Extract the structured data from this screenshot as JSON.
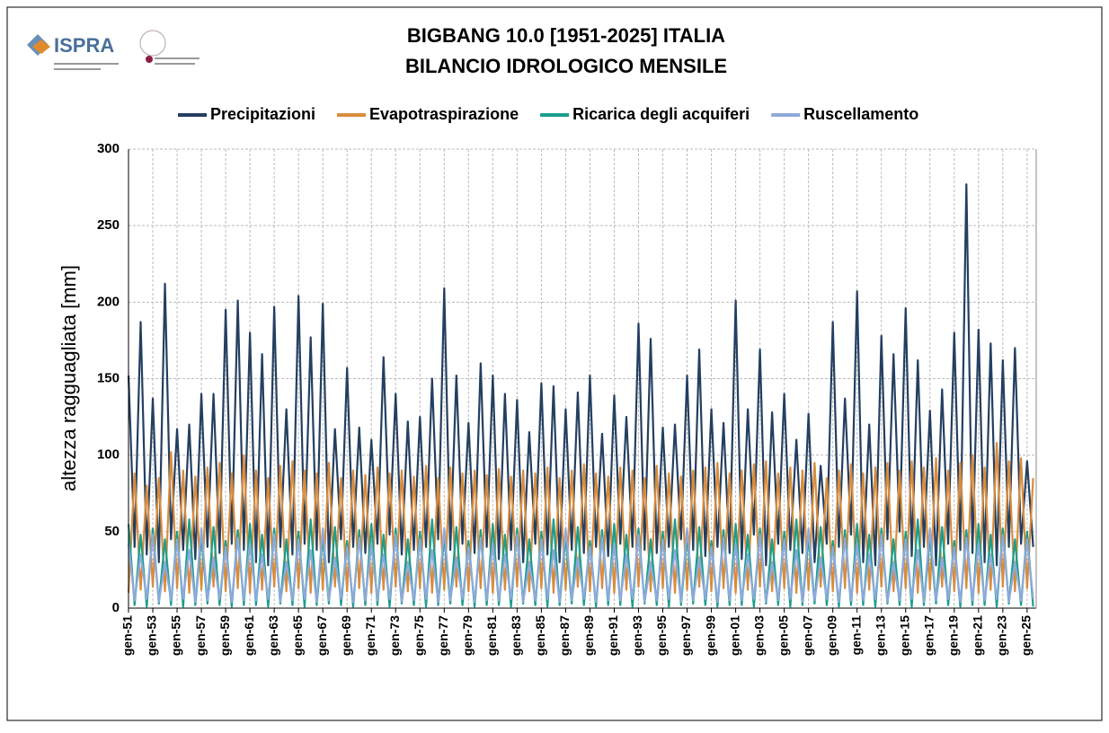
{
  "logo": "ISPRA",
  "chart_data": {
    "type": "line",
    "title": [
      "BIGBANG 10.0 [1951-2025] ITALIA",
      "BILANCIO IDROLOGICO MENSILE"
    ],
    "y_label": "altezza ragguagliata [mm]",
    "ylim": [
      0,
      300
    ],
    "yticks": [
      0,
      50,
      100,
      150,
      200,
      250,
      300
    ],
    "xlim": [
      1951,
      2025.75
    ],
    "xticks": [
      {
        "value": 1951,
        "label": "gen-51"
      },
      {
        "value": 1953,
        "label": "gen-53"
      },
      {
        "value": 1955,
        "label": "gen-55"
      },
      {
        "value": 1957,
        "label": "gen-57"
      },
      {
        "value": 1959,
        "label": "gen-59"
      },
      {
        "value": 1961,
        "label": "gen-61"
      },
      {
        "value": 1963,
        "label": "gen-63"
      },
      {
        "value": 1965,
        "label": "gen-65"
      },
      {
        "value": 1967,
        "label": "gen-67"
      },
      {
        "value": 1969,
        "label": "gen-69"
      },
      {
        "value": 1971,
        "label": "gen-71"
      },
      {
        "value": 1973,
        "label": "gen-73"
      },
      {
        "value": 1975,
        "label": "gen-75"
      },
      {
        "value": 1977,
        "label": "gen-77"
      },
      {
        "value": 1979,
        "label": "gen-79"
      },
      {
        "value": 1981,
        "label": "gen-81"
      },
      {
        "value": 1983,
        "label": "gen-83"
      },
      {
        "value": 1985,
        "label": "gen-85"
      },
      {
        "value": 1987,
        "label": "gen-87"
      },
      {
        "value": 1989,
        "label": "gen-89"
      },
      {
        "value": 1991,
        "label": "gen-91"
      },
      {
        "value": 1993,
        "label": "gen-93"
      },
      {
        "value": 1995,
        "label": "gen-95"
      },
      {
        "value": 1997,
        "label": "gen-97"
      },
      {
        "value": 1999,
        "label": "gen-99"
      },
      {
        "value": 2001,
        "label": "gen-01"
      },
      {
        "value": 2003,
        "label": "gen-03"
      },
      {
        "value": 2005,
        "label": "gen-05"
      },
      {
        "value": 2007,
        "label": "gen-07"
      },
      {
        "value": 2009,
        "label": "gen-09"
      },
      {
        "value": 2011,
        "label": "gen-11"
      },
      {
        "value": 2013,
        "label": "gen-13"
      },
      {
        "value": 2015,
        "label": "gen-15"
      },
      {
        "value": 2017,
        "label": "gen-17"
      },
      {
        "value": 2019,
        "label": "gen-19"
      },
      {
        "value": 2021,
        "label": "gen-21"
      },
      {
        "value": 2023,
        "label": "gen-23"
      },
      {
        "value": 2025,
        "label": "gen-25"
      }
    ],
    "grid": true,
    "x": [
      1951,
      1951.5,
      1952,
      1952.5,
      1953,
      1953.5,
      1954,
      1954.5,
      1955,
      1955.5,
      1956,
      1956.5,
      1957,
      1957.5,
      1958,
      1958.5,
      1959,
      1959.5,
      1960,
      1960.5,
      1961,
      1961.5,
      1962,
      1962.5,
      1963,
      1963.5,
      1964,
      1964.5,
      1965,
      1965.5,
      1966,
      1966.5,
      1967,
      1967.5,
      1968,
      1968.5,
      1969,
      1969.5,
      1970,
      1970.5,
      1971,
      1971.5,
      1972,
      1972.5,
      1973,
      1973.5,
      1974,
      1974.5,
      1975,
      1975.5,
      1976,
      1976.5,
      1977,
      1977.5,
      1978,
      1978.5,
      1979,
      1979.5,
      1980,
      1980.5,
      1981,
      1981.5,
      1982,
      1982.5,
      1983,
      1983.5,
      1984,
      1984.5,
      1985,
      1985.5,
      1986,
      1986.5,
      1987,
      1987.5,
      1988,
      1988.5,
      1989,
      1989.5,
      1990,
      1990.5,
      1991,
      1991.5,
      1992,
      1992.5,
      1993,
      1993.5,
      1994,
      1994.5,
      1995,
      1995.5,
      1996,
      1996.5,
      1997,
      1997.5,
      1998,
      1998.5,
      1999,
      1999.5,
      2000,
      2000.5,
      2001,
      2001.5,
      2002,
      2002.5,
      2003,
      2003.5,
      2004,
      2004.5,
      2005,
      2005.5,
      2006,
      2006.5,
      2007,
      2007.5,
      2008,
      2008.5,
      2009,
      2009.5,
      2010,
      2010.5,
      2011,
      2011.5,
      2012,
      2012.5,
      2013,
      2013.5,
      2014,
      2014.5,
      2015,
      2015.5,
      2016,
      2016.5,
      2017,
      2017.5,
      2018,
      2018.5,
      2019,
      2019.5,
      2020,
      2020.5,
      2021,
      2021.5,
      2022,
      2022.5,
      2023,
      2023.5,
      2024,
      2024.5,
      2025,
      2025.5
    ],
    "series": [
      {
        "name": "Precipitazioni",
        "color": "#243f60",
        "values": [
          152,
          40,
          187,
          35,
          137,
          30,
          212,
          45,
          117,
          38,
          120,
          32,
          140,
          40,
          140,
          36,
          195,
          42,
          201,
          38,
          180,
          30,
          166,
          28,
          197,
          40,
          130,
          35,
          204,
          42,
          177,
          38,
          199,
          30,
          117,
          45,
          157,
          40,
          118,
          36,
          110,
          42,
          164,
          48,
          140,
          35,
          122,
          38,
          125,
          40,
          150,
          45,
          209,
          38,
          152,
          42,
          121,
          36,
          160,
          40,
          152,
          32,
          140,
          38,
          136,
          30,
          115,
          42,
          147,
          35,
          145,
          30,
          130,
          38,
          141,
          36,
          152,
          40,
          114,
          34,
          139,
          42,
          125,
          40,
          186,
          38,
          176,
          36,
          118,
          40,
          120,
          45,
          152,
          38,
          169,
          34,
          130,
          40,
          121,
          36,
          201,
          32,
          130,
          48,
          169,
          28,
          128,
          42,
          140,
          38,
          110,
          36,
          127,
          30,
          93,
          42,
          187,
          40,
          137,
          48,
          207,
          30,
          120,
          28,
          178,
          45,
          166,
          50,
          196,
          34,
          162,
          40,
          129,
          28,
          143,
          42,
          180,
          38,
          277,
          36,
          182,
          30,
          173,
          28,
          162,
          40,
          170,
          42,
          96,
          40
        ]
      },
      {
        "name": "Evapotraspirazione",
        "color": "#d98c3c",
        "values": [
          10,
          88,
          12,
          80,
          14,
          85,
          11,
          102,
          13,
          90,
          10,
          86,
          12,
          92,
          14,
          95,
          11,
          88,
          13,
          100,
          10,
          90,
          12,
          85,
          14,
          93,
          11,
          96,
          13,
          90,
          10,
          88,
          12,
          95,
          14,
          85,
          11,
          90,
          13,
          87,
          10,
          92,
          12,
          88,
          14,
          90,
          11,
          86,
          13,
          93,
          10,
          85,
          12,
          92,
          14,
          88,
          11,
          90,
          13,
          87,
          10,
          91,
          12,
          86,
          14,
          90,
          11,
          88,
          13,
          92,
          10,
          85,
          12,
          90,
          14,
          94,
          11,
          88,
          13,
          86,
          10,
          92,
          12,
          90,
          14,
          85,
          11,
          93,
          13,
          88,
          10,
          86,
          12,
          90,
          14,
          92,
          11,
          95,
          13,
          88,
          10,
          90,
          12,
          94,
          14,
          96,
          11,
          88,
          13,
          92,
          10,
          90,
          12,
          95,
          14,
          85,
          11,
          90,
          13,
          94,
          10,
          88,
          12,
          92,
          14,
          95,
          11,
          90,
          13,
          96,
          10,
          92,
          12,
          98,
          14,
          90,
          11,
          95,
          13,
          100,
          10,
          92,
          12,
          108,
          14,
          96,
          11,
          98,
          13,
          85
        ]
      },
      {
        "name": "Ricarica degli acquiferi",
        "color": "#1a9e8c",
        "values": [
          55,
          2,
          48,
          1,
          52,
          3,
          45,
          2,
          50,
          1,
          58,
          2,
          47,
          3,
          53,
          2,
          44,
          1,
          51,
          2,
          55,
          2,
          48,
          1,
          52,
          3,
          45,
          2,
          50,
          1,
          58,
          2,
          47,
          3,
          53,
          2,
          44,
          1,
          51,
          2,
          55,
          2,
          48,
          1,
          52,
          3,
          45,
          2,
          50,
          1,
          58,
          2,
          47,
          3,
          53,
          2,
          44,
          1,
          51,
          2,
          55,
          2,
          48,
          1,
          52,
          3,
          45,
          2,
          50,
          1,
          58,
          2,
          47,
          3,
          53,
          2,
          44,
          1,
          51,
          2,
          55,
          2,
          48,
          1,
          52,
          3,
          45,
          2,
          50,
          1,
          58,
          2,
          47,
          3,
          53,
          2,
          44,
          1,
          51,
          2,
          55,
          2,
          48,
          1,
          52,
          3,
          45,
          2,
          50,
          1,
          58,
          2,
          47,
          3,
          53,
          2,
          44,
          1,
          51,
          2,
          55,
          2,
          48,
          1,
          52,
          3,
          45,
          2,
          50,
          1,
          58,
          2,
          47,
          3,
          53,
          2,
          44,
          1,
          51,
          2,
          55,
          2,
          48,
          1,
          52,
          3,
          45,
          2,
          50,
          1
        ]
      },
      {
        "name": "Ruscellamento",
        "color": "#8ea9db",
        "values": [
          42,
          5,
          35,
          6,
          48,
          4,
          30,
          5,
          45,
          6,
          38,
          4,
          52,
          5,
          33,
          6,
          40,
          4,
          46,
          5,
          42,
          5,
          35,
          6,
          48,
          4,
          30,
          5,
          45,
          6,
          38,
          4,
          52,
          5,
          33,
          6,
          40,
          4,
          46,
          5,
          42,
          5,
          35,
          6,
          48,
          4,
          30,
          5,
          45,
          6,
          38,
          4,
          52,
          5,
          33,
          6,
          40,
          4,
          46,
          5,
          42,
          5,
          35,
          6,
          48,
          4,
          30,
          5,
          45,
          6,
          38,
          4,
          52,
          5,
          33,
          6,
          40,
          4,
          46,
          5,
          42,
          5,
          35,
          6,
          48,
          4,
          30,
          5,
          45,
          6,
          38,
          4,
          52,
          5,
          33,
          6,
          40,
          4,
          46,
          5,
          42,
          5,
          35,
          6,
          48,
          4,
          30,
          5,
          45,
          6,
          38,
          4,
          52,
          5,
          33,
          6,
          40,
          4,
          46,
          5,
          42,
          5,
          35,
          6,
          48,
          4,
          30,
          5,
          45,
          6,
          38,
          4,
          52,
          5,
          33,
          6,
          40,
          4,
          46,
          5,
          42,
          5,
          35,
          6,
          48,
          4,
          30,
          5,
          45,
          6
        ]
      }
    ]
  }
}
